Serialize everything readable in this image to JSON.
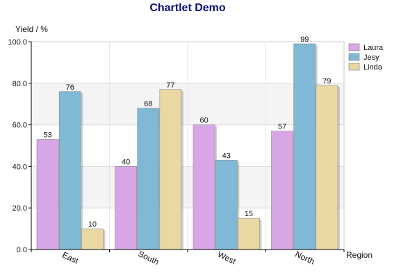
{
  "chart_data": {
    "type": "bar",
    "title": "Chartlet Demo",
    "xlabel": "Region",
    "ylabel": "Yield / %",
    "categories": [
      "East",
      "South",
      "West",
      "North"
    ],
    "series": [
      {
        "name": "Laura",
        "values": [
          53,
          40,
          60,
          57
        ],
        "color": "#d8a6e6"
      },
      {
        "name": "Jesy",
        "values": [
          76,
          68,
          43,
          99
        ],
        "color": "#7fb9d6"
      },
      {
        "name": "Linda",
        "values": [
          10,
          77,
          15,
          79
        ],
        "color": "#e9d8a4"
      }
    ],
    "ylim": [
      0,
      100
    ],
    "yticks": [
      "0.0",
      "20.0",
      "40.0",
      "60.0",
      "80.0",
      "100.0"
    ],
    "grid": true,
    "legend_position": "top-right",
    "band_colors": [
      "#ffffff",
      "#f4f4f4"
    ]
  }
}
